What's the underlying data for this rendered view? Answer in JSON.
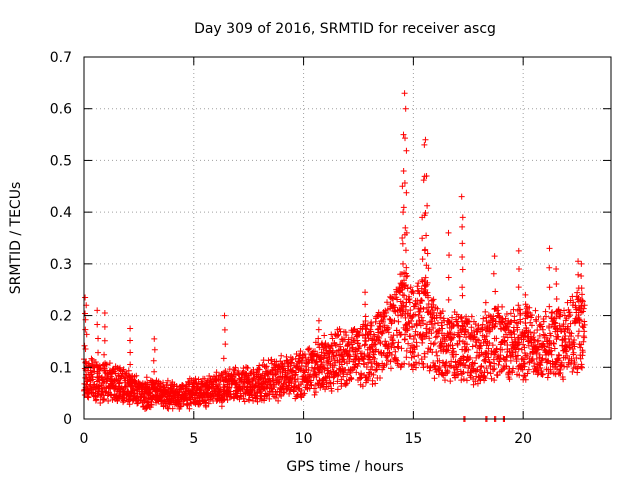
{
  "chart_data": {
    "type": "scatter",
    "title": "Day 309 of 2016, SRMTID for receiver ascg",
    "xlabel": "GPS time / hours",
    "ylabel": "SRMTID / TECUs",
    "xlim": [
      0,
      24
    ],
    "ylim": [
      0,
      0.7
    ],
    "xticks": [
      0,
      5,
      10,
      15,
      20
    ],
    "yticks": [
      0,
      0.1,
      0.2,
      0.3,
      0.4,
      0.5,
      0.6,
      0.7
    ],
    "grid": true,
    "marker": "+",
    "series": [
      {
        "name": "SRMTID",
        "color": "#ff0000",
        "baseline": {
          "x": [
            0,
            0.5,
            1,
            2,
            3,
            4,
            5,
            6,
            7,
            8,
            9,
            10,
            11,
            12,
            13,
            14,
            14.5,
            15,
            15.5,
            16,
            17,
            18,
            19,
            20,
            21,
            22,
            22.8
          ],
          "y": [
            0.08,
            0.075,
            0.07,
            0.06,
            0.05,
            0.045,
            0.05,
            0.06,
            0.065,
            0.07,
            0.08,
            0.09,
            0.11,
            0.12,
            0.13,
            0.16,
            0.2,
            0.18,
            0.19,
            0.15,
            0.14,
            0.13,
            0.15,
            0.15,
            0.14,
            0.15,
            0.19
          ]
        },
        "spikes": [
          {
            "x": 0.05,
            "y": 0.235
          },
          {
            "x": 0.1,
            "y": 0.22
          },
          {
            "x": 0.6,
            "y": 0.21
          },
          {
            "x": 0.95,
            "y": 0.205
          },
          {
            "x": 2.1,
            "y": 0.175
          },
          {
            "x": 3.2,
            "y": 0.155
          },
          {
            "x": 6.4,
            "y": 0.2
          },
          {
            "x": 10.7,
            "y": 0.19
          },
          {
            "x": 12.8,
            "y": 0.245
          },
          {
            "x": 14.4,
            "y": 0.28
          },
          {
            "x": 14.5,
            "y": 0.45
          },
          {
            "x": 14.55,
            "y": 0.55
          },
          {
            "x": 14.6,
            "y": 0.63
          },
          {
            "x": 14.65,
            "y": 0.6
          },
          {
            "x": 14.7,
            "y": 0.36
          },
          {
            "x": 15.4,
            "y": 0.39
          },
          {
            "x": 15.5,
            "y": 0.53
          },
          {
            "x": 15.55,
            "y": 0.54
          },
          {
            "x": 15.6,
            "y": 0.47
          },
          {
            "x": 15.65,
            "y": 0.32
          },
          {
            "x": 16.6,
            "y": 0.36
          },
          {
            "x": 17.2,
            "y": 0.43
          },
          {
            "x": 17.25,
            "y": 0.39
          },
          {
            "x": 18.3,
            "y": 0.225
          },
          {
            "x": 18.7,
            "y": 0.315
          },
          {
            "x": 19.8,
            "y": 0.325
          },
          {
            "x": 20.1,
            "y": 0.24
          },
          {
            "x": 21.2,
            "y": 0.33
          },
          {
            "x": 21.5,
            "y": 0.29
          },
          {
            "x": 22.5,
            "y": 0.305
          },
          {
            "x": 22.65,
            "y": 0.3
          }
        ],
        "zeros": [
          17.3,
          18.3,
          18.7,
          19.1
        ]
      }
    ]
  }
}
